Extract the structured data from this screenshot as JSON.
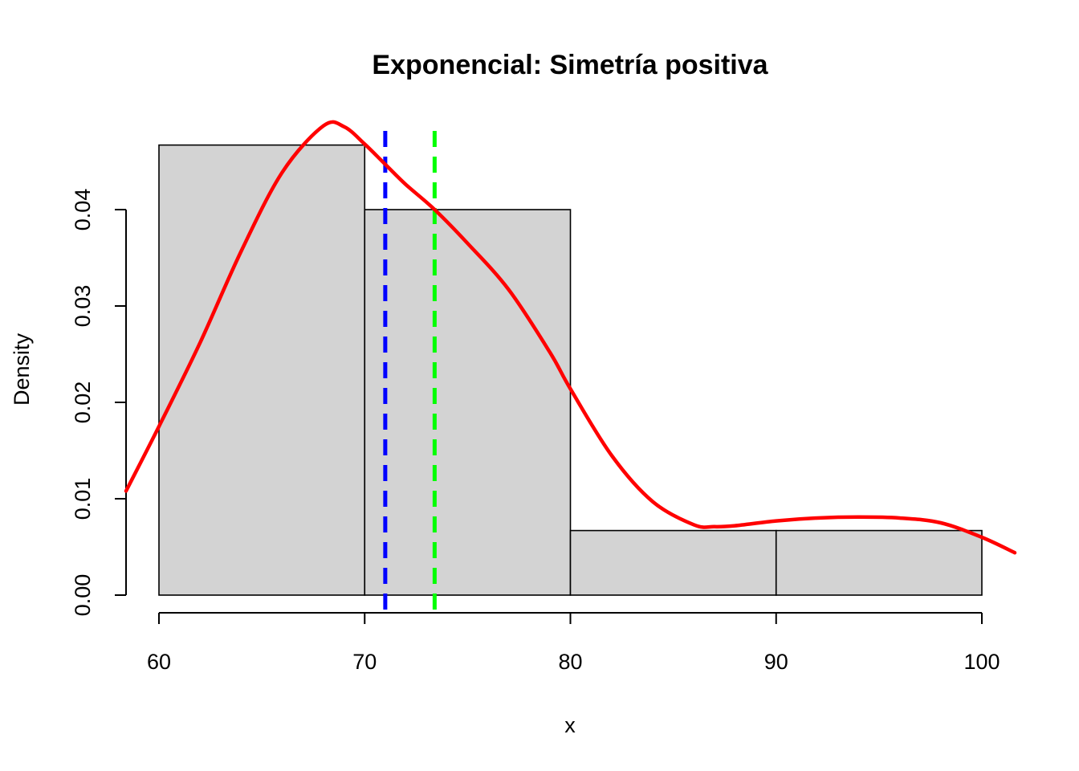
{
  "chart_data": {
    "type": "bar",
    "title": "Exponencial: Simetría positiva",
    "xlabel": "x",
    "ylabel": "Density",
    "xlim": [
      58.4,
      101.6
    ],
    "ylim": [
      0,
      0.049
    ],
    "x_ticks": [
      "60",
      "70",
      "80",
      "90",
      "100"
    ],
    "y_ticks": [
      "0.00",
      "0.01",
      "0.02",
      "0.03",
      "0.04"
    ],
    "bins": [
      {
        "from": 60,
        "to": 70,
        "density": 0.0467
      },
      {
        "from": 70,
        "to": 80,
        "density": 0.04
      },
      {
        "from": 80,
        "to": 90,
        "density": 0.0067
      },
      {
        "from": 90,
        "to": 100,
        "density": 0.0067
      }
    ],
    "density_curve": {
      "color": "#ff0000",
      "x": [
        58.4,
        60,
        62,
        64,
        66,
        68,
        69,
        70,
        71,
        72,
        73.4,
        75,
        77,
        79,
        80,
        82,
        84,
        86,
        87,
        88,
        90,
        92,
        94,
        96,
        98,
        100,
        101.6
      ],
      "y": [
        0.0108,
        0.0175,
        0.0262,
        0.0357,
        0.0439,
        0.0487,
        0.0486,
        0.0468,
        0.0447,
        0.0426,
        0.04,
        0.0365,
        0.0317,
        0.0252,
        0.0214,
        0.0145,
        0.0097,
        0.0073,
        0.0071,
        0.0072,
        0.0077,
        0.008,
        0.0081,
        0.008,
        0.0075,
        0.006,
        0.0044
      ]
    },
    "vlines": [
      {
        "x": 71.0,
        "color": "#0000ff",
        "style": "dashed"
      },
      {
        "x": 73.4,
        "color": "#00ff00",
        "style": "dashed"
      }
    ]
  }
}
